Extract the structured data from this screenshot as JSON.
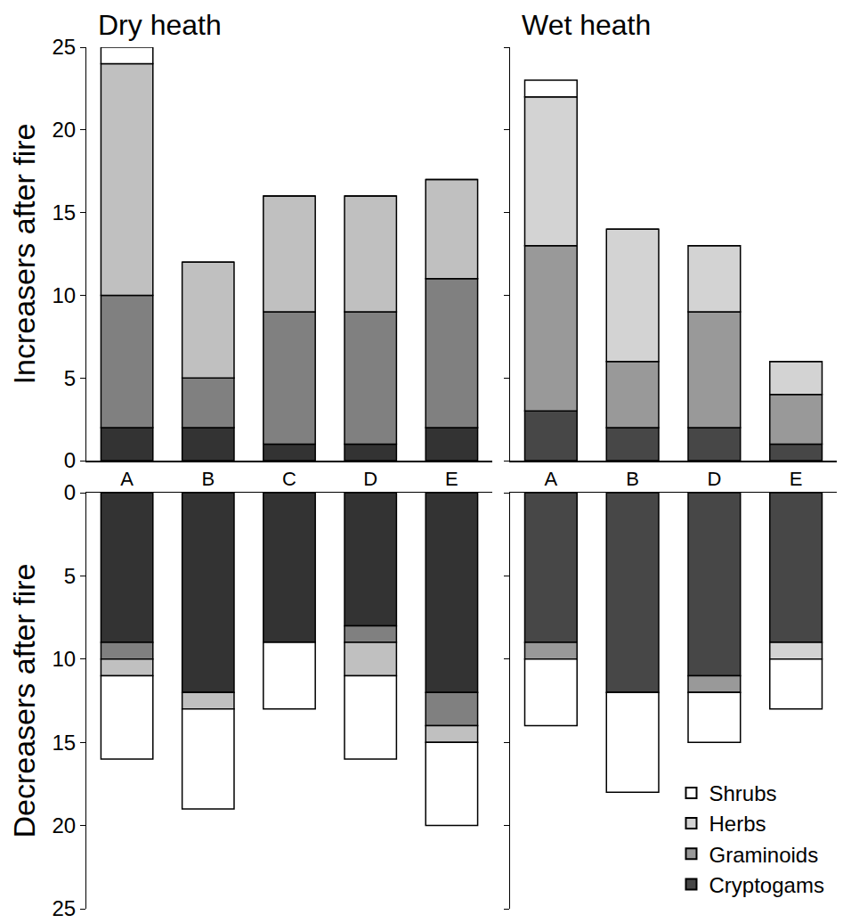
{
  "chart_data": [
    {
      "type": "bar",
      "stacked": true,
      "title": "Dry heath",
      "ylabel": "Increasers after fire",
      "categories": [
        "A",
        "B",
        "C",
        "D",
        "E"
      ],
      "series": [
        {
          "name": "Cryptogams",
          "color": "#333333",
          "values": [
            2,
            2,
            1,
            1,
            2
          ]
        },
        {
          "name": "Graminoids",
          "color": "#808080",
          "values": [
            8,
            3,
            8,
            8,
            9
          ]
        },
        {
          "name": "Herbs",
          "color": "#c0c0c0",
          "values": [
            14,
            7,
            7,
            7,
            6
          ]
        },
        {
          "name": "Shrubs",
          "color": "#ffffff",
          "values": [
            1,
            0,
            0,
            0,
            0
          ]
        }
      ],
      "ylim": [
        0,
        25
      ],
      "yticks": [
        0,
        5,
        10,
        15,
        20,
        25
      ],
      "grid": false,
      "tick_labels": true
    },
    {
      "type": "bar",
      "stacked": true,
      "title": "Wet heath",
      "categories": [
        "A",
        "B",
        "D",
        "E"
      ],
      "series": [
        {
          "name": "Cryptogams",
          "color": "#474747",
          "values": [
            3,
            2,
            2,
            1
          ]
        },
        {
          "name": "Graminoids",
          "color": "#999999",
          "values": [
            10,
            4,
            7,
            3
          ]
        },
        {
          "name": "Herbs",
          "color": "#d3d3d3",
          "values": [
            9,
            8,
            4,
            2
          ]
        },
        {
          "name": "Shrubs",
          "color": "#ffffff",
          "values": [
            1,
            0,
            0,
            0
          ]
        }
      ],
      "ylim": [
        0,
        25
      ],
      "yticks": [
        0,
        5,
        10,
        15,
        20,
        25
      ],
      "grid": false,
      "tick_labels": "x"
    },
    {
      "type": "bar",
      "stacked": true,
      "ylabel": "Decreasers after fire",
      "categories": [
        "A",
        "B",
        "C",
        "D",
        "E"
      ],
      "series": [
        {
          "name": "Cryptogams",
          "color": "#333333",
          "values": [
            9,
            12,
            9,
            8,
            12
          ]
        },
        {
          "name": "Graminoids",
          "color": "#808080",
          "values": [
            1,
            0,
            0,
            1,
            2
          ]
        },
        {
          "name": "Herbs",
          "color": "#c0c0c0",
          "values": [
            1,
            1,
            0,
            2,
            1
          ]
        },
        {
          "name": "Shrubs",
          "color": "#ffffff",
          "values": [
            5,
            6,
            4,
            5,
            5
          ]
        }
      ],
      "ylim": [
        25,
        0
      ],
      "yticks": [
        0,
        5,
        10,
        15,
        20,
        25
      ],
      "grid": false,
      "tick_labels": "y"
    },
    {
      "type": "bar",
      "stacked": true,
      "categories": [
        "A",
        "B",
        "D",
        "E"
      ],
      "series": [
        {
          "name": "Cryptogams",
          "color": "#474747",
          "values": [
            9,
            12,
            11,
            9
          ]
        },
        {
          "name": "Graminoids",
          "color": "#999999",
          "values": [
            1,
            0,
            1,
            0
          ]
        },
        {
          "name": "Herbs",
          "color": "#d3d3d3",
          "values": [
            0,
            0,
            0,
            1
          ]
        },
        {
          "name": "Shrubs",
          "color": "#ffffff",
          "values": [
            4,
            6,
            3,
            3
          ]
        }
      ],
      "ylim": [
        25,
        0
      ],
      "yticks": [
        0,
        5,
        10,
        15,
        20,
        25
      ],
      "grid": false,
      "tick_labels": false,
      "legend": "lower right"
    }
  ]
}
